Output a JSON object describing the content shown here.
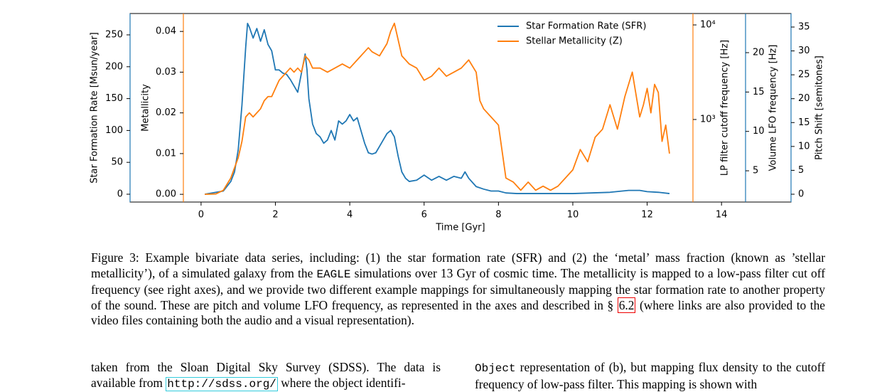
{
  "chart_data": {
    "type": "line",
    "xlabel": "Time [Gyr]",
    "xlim": [
      -1.91,
      15.87
    ],
    "xticks": [
      0,
      2,
      4,
      6,
      8,
      10,
      12,
      14
    ],
    "ylabel": "Star Formation Rate [Msun/year]",
    "ylim": [
      -12.3,
      283.5
    ],
    "yticks": [
      0,
      50,
      100,
      150,
      200,
      250
    ],
    "y2label": "Metallicity",
    "y2lim": [
      -0.0019,
      0.0444
    ],
    "y2ticks": [
      {
        "value": 0,
        "label": "0.00"
      },
      0.01,
      0.02,
      0.03,
      0.04
    ],
    "y3label": "LP filter cutoff frequency [Hz]",
    "y3log": true,
    "y3lim": [
      134,
      13200
    ],
    "y3ticks": [
      {
        "value": 1000,
        "label": "10³"
      },
      {
        "value": 10000,
        "label": "10⁴"
      }
    ],
    "y4label": "Volume LFO frequency [Hz]",
    "y4lim": [
      1.03,
      24.97
    ],
    "y4ticks": [
      5,
      10,
      15,
      20
    ],
    "y5label": "Pitch Shift [semitones]",
    "y5lim": [
      -1.64,
      37.83
    ],
    "y5ticks": [
      0,
      5,
      10,
      15,
      20,
      25,
      30,
      35
    ],
    "legend": "upper right",
    "series": [
      {
        "name": "Star Formation Rate (SFR)",
        "color": "#1f77b4",
        "axis": "y",
        "x": [
          0.1,
          0.6,
          0.8,
          0.9,
          1.0,
          1.1,
          1.2,
          1.25,
          1.3,
          1.4,
          1.5,
          1.6,
          1.7,
          1.8,
          1.9,
          2.0,
          2.1,
          2.2,
          2.3,
          2.4,
          2.5,
          2.6,
          2.7,
          2.8,
          2.85,
          2.9,
          3.0,
          3.1,
          3.2,
          3.3,
          3.4,
          3.5,
          3.6,
          3.7,
          3.8,
          3.9,
          4.0,
          4.1,
          4.2,
          4.3,
          4.4,
          4.5,
          4.6,
          4.7,
          4.8,
          4.9,
          5.0,
          5.1,
          5.2,
          5.3,
          5.4,
          5.5,
          5.6,
          5.8,
          6.0,
          6.2,
          6.4,
          6.6,
          6.8,
          7.0,
          7.1,
          7.2,
          7.4,
          7.6,
          7.8,
          8.0,
          8.2,
          8.5,
          9.0,
          9.5,
          10.0,
          10.5,
          11.0,
          11.5,
          11.8,
          12.0,
          12.3,
          12.6
        ],
        "values": [
          0,
          5,
          20,
          35,
          70,
          140,
          230,
          268,
          262,
          245,
          260,
          240,
          258,
          235,
          225,
          195,
          195,
          190,
          188,
          180,
          170,
          160,
          190,
          220,
          195,
          150,
          110,
          95,
          90,
          80,
          85,
          100,
          85,
          115,
          110,
          115,
          125,
          115,
          120,
          100,
          80,
          65,
          63,
          65,
          75,
          85,
          95,
          100,
          90,
          60,
          35,
          25,
          20,
          22,
          30,
          22,
          28,
          22,
          28,
          25,
          35,
          25,
          12,
          8,
          5,
          5,
          2,
          1,
          1,
          1,
          1,
          2,
          3,
          6,
          6,
          4,
          3,
          1
        ]
      },
      {
        "name": "Stellar Metallicity (Z)",
        "color": "#ff7f0e",
        "axis": "y2",
        "x": [
          0.1,
          0.4,
          0.6,
          0.8,
          1.0,
          1.1,
          1.2,
          1.3,
          1.4,
          1.5,
          1.6,
          1.7,
          1.8,
          1.9,
          2.0,
          2.1,
          2.2,
          2.3,
          2.4,
          2.5,
          2.6,
          2.7,
          2.8,
          2.9,
          3.0,
          3.2,
          3.4,
          3.6,
          3.8,
          4.0,
          4.2,
          4.4,
          4.5,
          4.6,
          4.8,
          5.0,
          5.1,
          5.2,
          5.3,
          5.4,
          5.6,
          5.8,
          6.0,
          6.2,
          6.4,
          6.6,
          6.8,
          7.0,
          7.2,
          7.4,
          7.5,
          7.6,
          7.8,
          8.0,
          8.2,
          8.4,
          8.6,
          8.8,
          9.0,
          9.2,
          9.4,
          9.6,
          9.8,
          10.0,
          10.2,
          10.4,
          10.6,
          10.8,
          11.0,
          11.2,
          11.4,
          11.6,
          11.8,
          11.9,
          12.0,
          12.1,
          12.2,
          12.3,
          12.4,
          12.5,
          12.6
        ],
        "values": [
          0,
          0.0001,
          0.001,
          0.004,
          0.009,
          0.013,
          0.019,
          0.02,
          0.019,
          0.02,
          0.021,
          0.023,
          0.024,
          0.024,
          0.026,
          0.028,
          0.029,
          0.03,
          0.031,
          0.03,
          0.031,
          0.03,
          0.034,
          0.033,
          0.031,
          0.031,
          0.03,
          0.031,
          0.032,
          0.031,
          0.033,
          0.035,
          0.036,
          0.035,
          0.034,
          0.037,
          0.04,
          0.042,
          0.038,
          0.034,
          0.032,
          0.031,
          0.028,
          0.029,
          0.031,
          0.029,
          0.03,
          0.031,
          0.033,
          0.03,
          0.023,
          0.021,
          0.019,
          0.017,
          0.004,
          0.003,
          0.001,
          0.003,
          0.001,
          0.002,
          0.001,
          0.002,
          0.004,
          0.006,
          0.011,
          0.008,
          0.014,
          0.016,
          0.022,
          0.016,
          0.024,
          0.03,
          0.019,
          0.022,
          0.026,
          0.02,
          0.027,
          0.025,
          0.013,
          0.017,
          0.01
        ]
      }
    ]
  },
  "caption": {
    "part1": "Figure 3: Example bivariate data series, including: (1) the star formation rate (SFR) and (2) the ‘metal’ mass fraction (known as ’stellar metallicity’), of a simulated galaxy from the ",
    "code": "EAGLE",
    "part2": " simulations over 13 Gyr of cosmic time. The metallicity is mapped to a low-pass filter cut off frequency (see right axes), and we provide two different example mappings for simultaneously mapping the star formation rate to another property of the sound. These are pitch and volume LFO frequency, as represented in the axes and described in § ",
    "ref": "6.2",
    "part3": " (where links are also provided to the video files containing both the audio and a visual representation)."
  },
  "left_column": {
    "part1": "taken from the Sloan Digital Sky Survey (SDSS). The data is available from ",
    "url": "http://sdss.org/",
    "part2": " where the object identifi-"
  },
  "right_column": {
    "code": "Object",
    "part1": " representation of (b), but mapping flux density to the cutoff frequency of low-pass filter. This mapping is shown with"
  }
}
